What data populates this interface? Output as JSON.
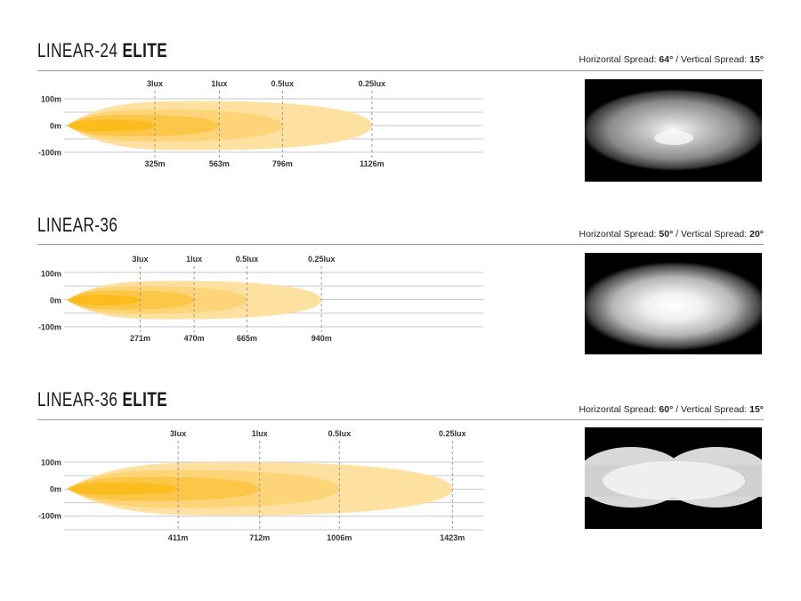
{
  "chart_data": [
    {
      "type": "beam-pattern",
      "title_model": "LINEAR-24",
      "title_suffix": "ELITE",
      "spread": {
        "horizontal_label": "Horizontal Spread:",
        "horizontal": "64°",
        "separator": "/",
        "vertical_label": "Vertical Spread:",
        "vertical": "15°"
      },
      "y_ticks": [
        "100m",
        "0m",
        "-100m"
      ],
      "lux_levels": [
        "3lux",
        "1lux",
        "0.5lux",
        "0.25lux"
      ],
      "distances_m": [
        325,
        563,
        796,
        1126
      ],
      "distance_labels": [
        "325m",
        "563m",
        "796m",
        "1126m"
      ],
      "beam_colors": [
        "#fbbd1e",
        "#fcc748",
        "#fdd477",
        "#fee0a0"
      ],
      "photo": "oval-beam"
    },
    {
      "type": "beam-pattern",
      "title_model": "LINEAR-36",
      "title_suffix": "",
      "spread": {
        "horizontal_label": "Horizontal Spread:",
        "horizontal": "50°",
        "separator": "/",
        "vertical_label": "Vertical Spread:",
        "vertical": "20°"
      },
      "y_ticks": [
        "100m",
        "0m",
        "-100m"
      ],
      "lux_levels": [
        "3lux",
        "1lux",
        "0.5lux",
        "0.25lux"
      ],
      "distances_m": [
        271,
        470,
        665,
        940
      ],
      "distance_labels": [
        "271m",
        "470m",
        "665m",
        "940m"
      ],
      "beam_colors": [
        "#fbbd1e",
        "#fcc748",
        "#fdd477",
        "#fee0a0"
      ],
      "photo": "round-beam"
    },
    {
      "type": "beam-pattern",
      "title_model": "LINEAR-36",
      "title_suffix": "ELITE",
      "spread": {
        "horizontal_label": "Horizontal Spread:",
        "horizontal": "60°",
        "separator": "/",
        "vertical_label": "Vertical Spread:",
        "vertical": "15°"
      },
      "y_ticks": [
        "100m",
        "0m",
        "-100m"
      ],
      "lux_levels": [
        "3lux",
        "1lux",
        "0.5lux",
        "0.25lux"
      ],
      "distances_m": [
        411,
        712,
        1006,
        1423
      ],
      "distance_labels": [
        "411m",
        "712m",
        "1006m",
        "1423m"
      ],
      "beam_colors": [
        "#fbbd1e",
        "#fcc748",
        "#fdd477",
        "#fee0a0"
      ],
      "photo": "bowtie-beam"
    }
  ]
}
